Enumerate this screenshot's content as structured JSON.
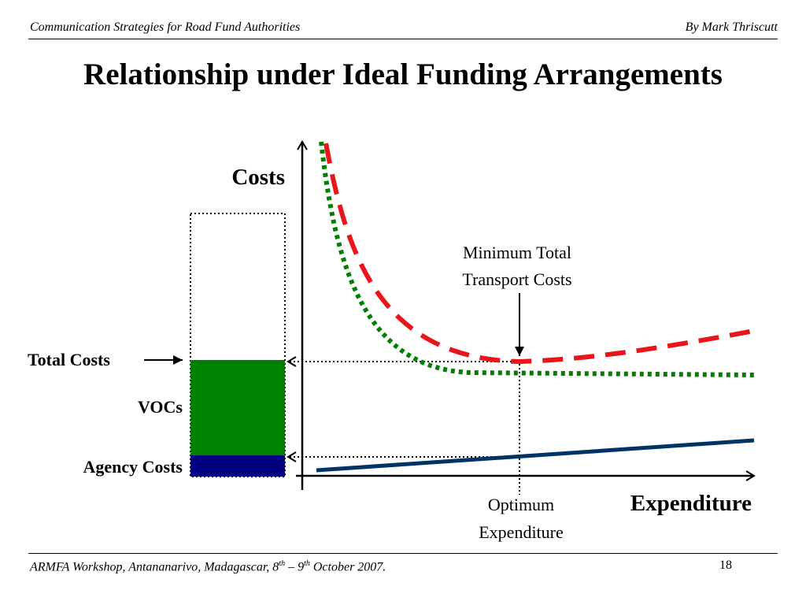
{
  "header": {
    "left": "Communication Strategies for Road Fund Authorities",
    "right": "By Mark Thriscutt"
  },
  "title": "Relationship under Ideal Funding Arrangements",
  "diagram": {
    "y_axis_label": "Costs",
    "x_axis_label": "Expenditure",
    "annotation_line1": "Minimum Total",
    "annotation_line2": "Transport Costs",
    "optimum_line1": "Optimum",
    "optimum_line2": "Expenditure",
    "bar_labels": {
      "total": "Total Costs",
      "vocs": "VOCs",
      "agency": "Agency Costs"
    },
    "colors": {
      "total_cost_curve": "#e8161b",
      "voc_curve": "#008000",
      "agency_line": "#003366",
      "voc_bar": "#008000",
      "agency_bar": "#000080"
    }
  },
  "footer": {
    "text_before_1": "ARMFA Workshop, Antananarivo, Madagascar, 8",
    "sup1": "th",
    "text_mid": " – 9",
    "sup2": "th",
    "text_after": " October 2007.",
    "page_number": "18"
  }
}
